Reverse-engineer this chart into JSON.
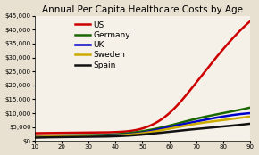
{
  "title": "Annual Per Capita Healthcare Costs by Age",
  "ages": [
    10,
    20,
    30,
    40,
    50,
    60,
    70,
    80,
    90
  ],
  "series": {
    "US": [
      2800,
      2900,
      3000,
      3200,
      4500,
      10000,
      21000,
      33000,
      43000
    ],
    "Germany": [
      1800,
      2000,
      2100,
      2400,
      3500,
      5500,
      8000,
      10000,
      12000
    ],
    "UK": [
      1600,
      1800,
      1900,
      2100,
      3000,
      5000,
      7000,
      8800,
      10000
    ],
    "Sweden": [
      1500,
      1700,
      1800,
      2000,
      2800,
      4400,
      6200,
      7500,
      8800
    ],
    "Spain": [
      1200,
      1400,
      1500,
      1700,
      2300,
      3300,
      4300,
      5200,
      6200
    ]
  },
  "colors": {
    "US": "#cc0000",
    "Germany": "#1a6600",
    "UK": "#0000cc",
    "Sweden": "#ccaa00",
    "Spain": "#111111"
  },
  "ylim": [
    0,
    45000
  ],
  "xlim": [
    10,
    90
  ],
  "yticks": [
    0,
    5000,
    10000,
    15000,
    20000,
    25000,
    30000,
    35000,
    40000,
    45000
  ],
  "xticks": [
    10,
    20,
    30,
    40,
    50,
    60,
    70,
    80,
    90
  ],
  "background_color": "#e8e0d0",
  "plot_background": "#f5f0e8",
  "legend_fontsize": 6.5,
  "title_fontsize": 7.5,
  "linewidth": 1.8
}
